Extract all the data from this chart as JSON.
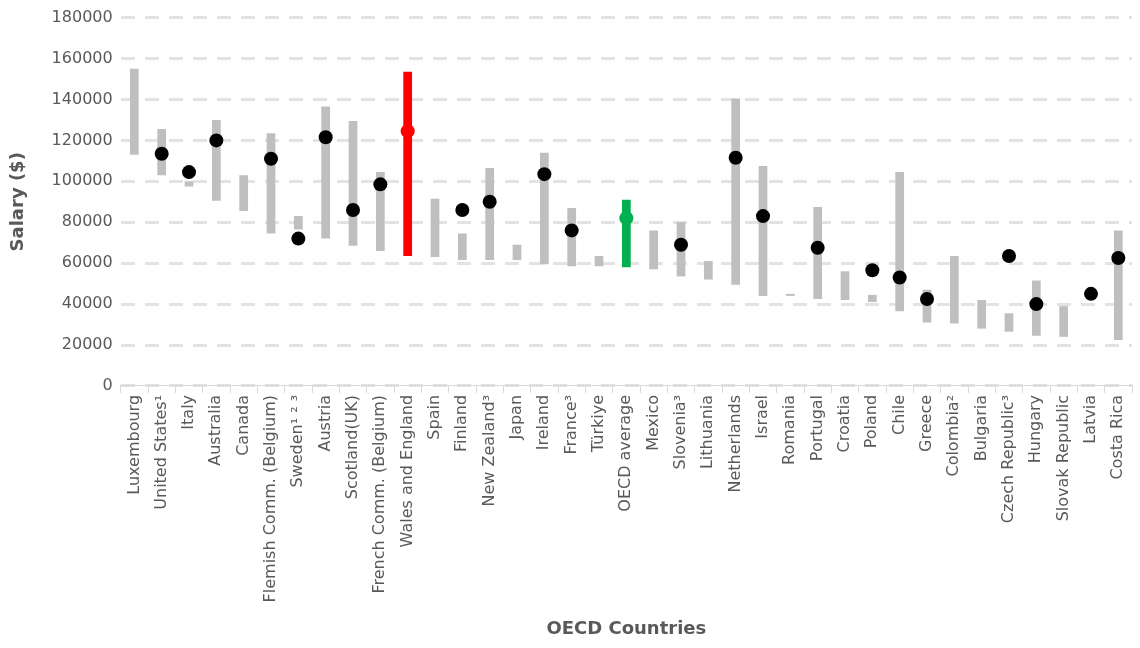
{
  "chart_data": {
    "type": "bar",
    "xlabel": "OECD Countries",
    "ylabel": "Salary ($)",
    "categories": [
      "Luxembourg",
      "United States¹",
      "Italy",
      "Australia",
      "Canada",
      "Flemish Comm. (Belgium)",
      "Sweden¹ ² ³",
      "Austria",
      "Scotland(UK)",
      "French Comm. (Belgium)",
      "Wales and England",
      "Spain",
      "Finland",
      "New Zealand³",
      "Japan",
      "Ireland",
      "France³",
      "Türkiye",
      "OECD average",
      "Mexico",
      "Slovenia³",
      "Lithuania",
      "Netherlands",
      "Israel",
      "Romania",
      "Portugal",
      "Croatia",
      "Poland",
      "Chile",
      "Greece",
      "Colombia²",
      "Bulgaria",
      "Czech Republic³",
      "Hungary",
      "Slovak Republic",
      "Latvia",
      "Costa Rica"
    ],
    "series": [
      {
        "base": [
          113000,
          103000,
          97500,
          90500,
          85500,
          74500,
          76500,
          72000,
          68500,
          66000,
          63500,
          63000,
          61500,
          61500,
          61500,
          59500,
          58500,
          58500,
          58000,
          57000,
          53500,
          52000,
          49500,
          44000,
          44000,
          42500,
          42000,
          41000,
          36500,
          31000,
          30500,
          28000,
          26500,
          24500,
          24000,
          null,
          22500
        ],
        "values": [
          42000,
          22500,
          2500,
          39500,
          17500,
          49000,
          6500,
          64500,
          61000,
          38500,
          90000,
          28500,
          13000,
          45000,
          7500,
          54500,
          28500,
          5000,
          33000,
          19000,
          26500,
          9000,
          91000,
          63500,
          1000,
          45000,
          14000,
          3500,
          68000,
          16000,
          33000,
          14000,
          9000,
          27000,
          15000,
          null,
          53500
        ],
        "colors": [
          "#bfbfbf",
          "#bfbfbf",
          "#bfbfbf",
          "#bfbfbf",
          "#bfbfbf",
          "#bfbfbf",
          "#bfbfbf",
          "#bfbfbf",
          "#bfbfbf",
          "#bfbfbf",
          "#ff0000",
          "#bfbfbf",
          "#bfbfbf",
          "#bfbfbf",
          "#bfbfbf",
          "#bfbfbf",
          "#bfbfbf",
          "#bfbfbf",
          "#00b050",
          "#bfbfbf",
          "#bfbfbf",
          "#bfbfbf",
          "#bfbfbf",
          "#bfbfbf",
          "#bfbfbf",
          "#bfbfbf",
          "#bfbfbf",
          "#bfbfbf",
          "#bfbfbf",
          "#bfbfbf",
          "#bfbfbf",
          "#bfbfbf",
          "#bfbfbf",
          "#bfbfbf",
          "#bfbfbf",
          "#bfbfbf",
          "#bfbfbf"
        ]
      },
      {
        "type": "scatter",
        "values": [
          null,
          113500,
          104500,
          120000,
          null,
          111000,
          72000,
          121500,
          86000,
          98500,
          124500,
          null,
          86000,
          90000,
          null,
          103500,
          76000,
          null,
          82000,
          null,
          69000,
          null,
          111500,
          83000,
          null,
          67500,
          null,
          56500,
          53000,
          42500,
          null,
          null,
          63500,
          40000,
          null,
          45000,
          62500
        ],
        "colors": [
          "#000000",
          "#000000",
          "#000000",
          "#000000",
          "#000000",
          "#000000",
          "#000000",
          "#000000",
          "#000000",
          "#000000",
          "#ff0000",
          "#000000",
          "#000000",
          "#000000",
          "#000000",
          "#000000",
          "#000000",
          "#000000",
          "#00b050",
          "#000000",
          "#000000",
          "#000000",
          "#000000",
          "#000000",
          "#000000",
          "#000000",
          "#000000",
          "#000000",
          "#000000",
          "#000000",
          "#000000",
          "#000000",
          "#000000",
          "#000000",
          "#000000",
          "#000000",
          "#000000"
        ]
      }
    ],
    "ylim": [
      0,
      180000
    ],
    "yticks": [
      0,
      20000,
      40000,
      60000,
      80000,
      100000,
      120000,
      140000,
      160000,
      180000
    ],
    "grid": "y",
    "marker": "circle"
  }
}
